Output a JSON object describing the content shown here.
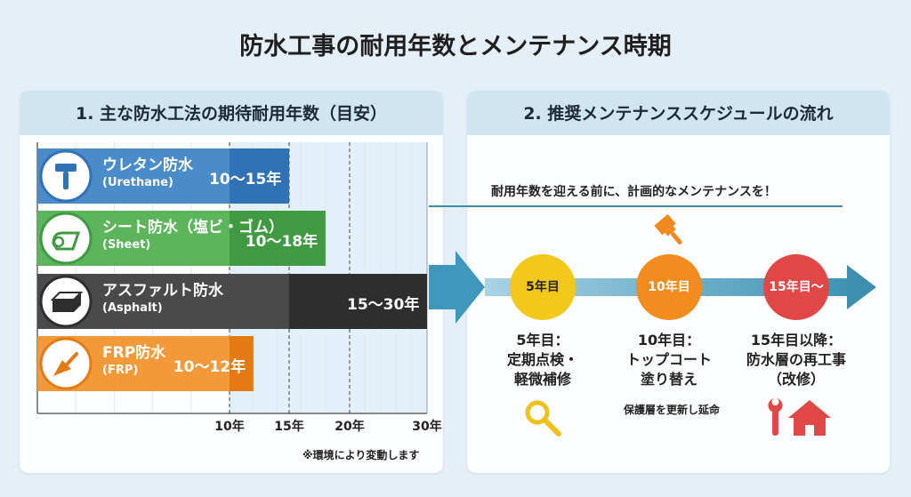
{
  "title": "防水工事の耐用年数とメンテナンス時期",
  "left_panel": {
    "heading": "1. 主な防水工法の期待耐用年数（目安）",
    "note": "※環境により変動します"
  },
  "right_panel": {
    "heading": "2. 推奨メンテナンススケジュールの流れ",
    "subtitle": "耐用年数を迎える前に、計画的なメンテナンスを！",
    "steps": [
      {
        "badge": "5年目",
        "line1": "5年目：",
        "line2": "定期点検・",
        "line3": "軽微補修",
        "icon": "magnifier-icon",
        "color": "#f2c81b"
      },
      {
        "badge": "10年目",
        "line1": "10年目：",
        "line2": "トップコート",
        "line3": "塗り替え",
        "icon": "paintbrush-icon",
        "color": "#f28c1e",
        "extra": "保護層を更新し延命"
      },
      {
        "badge": "15年目〜",
        "line1": "15年目以降：",
        "line2": "防水層の再工事",
        "line3": "（改修）",
        "icon": "wrench-house-icon",
        "color": "#e04848"
      }
    ]
  },
  "chart_data": {
    "type": "bar",
    "orientation": "horizontal",
    "title": "1. 主な防水工法の期待耐用年数（目安）",
    "categories": [
      "ウレタン防水",
      "シート防水（塩ビ・ゴム）",
      "アスファルト防水",
      "FRP防水"
    ],
    "subtitles": [
      "(Urethane)",
      "(Sheet)",
      "(Asphalt)",
      "(FRP)"
    ],
    "ranges": [
      [
        10,
        15
      ],
      [
        10,
        18
      ],
      [
        15,
        30
      ],
      [
        10,
        12
      ]
    ],
    "range_labels": [
      "10〜15年",
      "10〜18年",
      "15〜30年",
      "10〜12年"
    ],
    "colors": [
      {
        "light": "#4a8cc9",
        "dark": "#2f72b5"
      },
      {
        "light": "#5cb55a",
        "dark": "#3f9a42"
      },
      {
        "light": "#4a4a4a",
        "dark": "#2e2e2e"
      },
      {
        "light": "#f29a3a",
        "dark": "#e47a14"
      }
    ],
    "icons": [
      "paint-roller-icon",
      "sheet-roll-icon",
      "asphalt-block-icon",
      "trowel-icon"
    ],
    "xticks": [
      10,
      15,
      20,
      30
    ],
    "xtick_labels": [
      "10年",
      "15年",
      "20年",
      "30年"
    ],
    "xlim": [
      0,
      30
    ],
    "unit": "年"
  }
}
